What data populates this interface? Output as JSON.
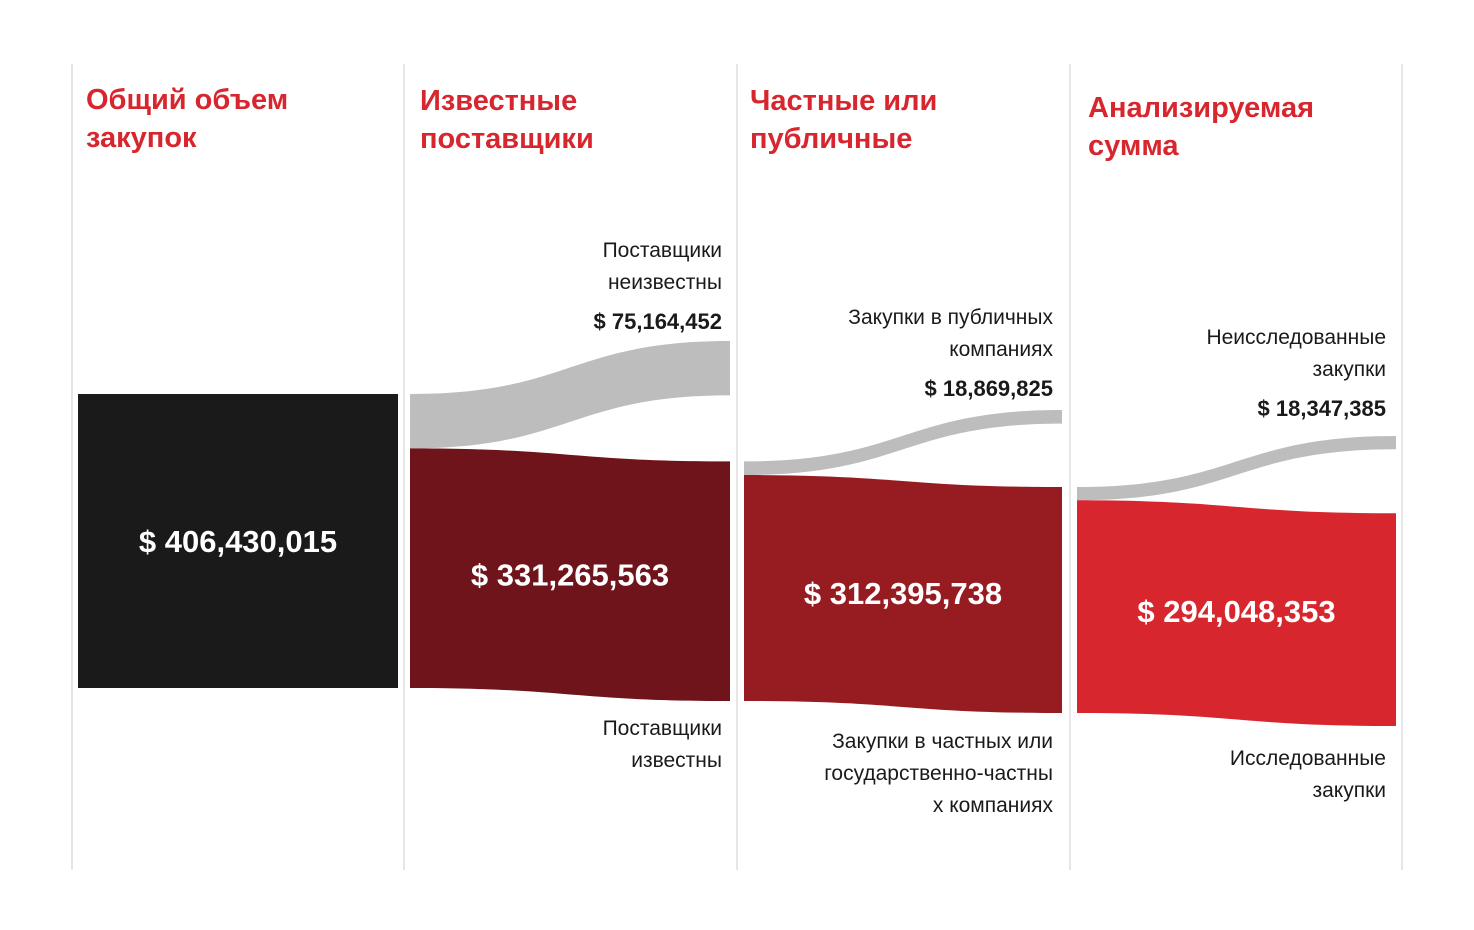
{
  "colors": {
    "title": "#d7262e",
    "gridline": "#cccccc",
    "total": "#1a1a1a",
    "stage1": "#6e141a",
    "stage2": "#961c22",
    "stage3": "#d7262e",
    "dropoff": "#bdbdbd"
  },
  "columns": [
    {
      "title_lines": [
        "Общий объем",
        "закупок"
      ]
    },
    {
      "title_lines": [
        "Известные",
        "поставщики"
      ]
    },
    {
      "title_lines": [
        "Частные или",
        "публичные"
      ]
    },
    {
      "title_lines": [
        "Анализируемая",
        "сумма"
      ]
    }
  ],
  "chart_data": {
    "type": "sankey",
    "total": {
      "label": "$ 406,430,015",
      "value": 406430015
    },
    "stages": [
      {
        "kept": {
          "label_lines": [
            "Поставщики",
            "известны"
          ],
          "value": 331265563,
          "value_label": "$ 331,265,563"
        },
        "dropped": {
          "label_lines": [
            "Поставщики",
            "неизвестны"
          ],
          "value": 75164452,
          "value_label": "$ 75,164,452"
        }
      },
      {
        "kept": {
          "label_lines": [
            "Закупки в частных или",
            "государственно-частны",
            "х компаниях"
          ],
          "value": 312395738,
          "value_label": "$ 312,395,738"
        },
        "dropped": {
          "label_lines": [
            "Закупки в публичных",
            "компаниях"
          ],
          "value": 18869825,
          "value_label": "$ 18,869,825"
        }
      },
      {
        "kept": {
          "label_lines": [
            "Исследованные",
            "закупки"
          ],
          "value": 294048353,
          "value_label": "$ 294,048,353"
        },
        "dropped": {
          "label_lines": [
            "Неисследованные",
            "закупки"
          ],
          "value": 18347385,
          "value_label": "$ 18,347,385"
        }
      }
    ]
  }
}
